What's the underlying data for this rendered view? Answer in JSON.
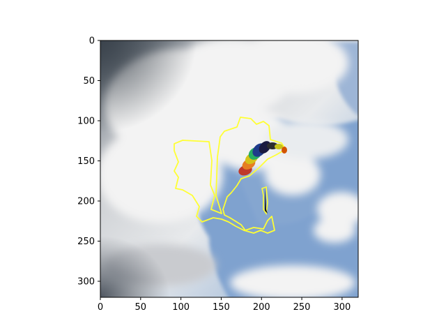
{
  "axes": {
    "x_ticks": [
      "0",
      "50",
      "100",
      "150",
      "200",
      "250",
      "300"
    ],
    "y_ticks": [
      "0",
      "50",
      "100",
      "150",
      "200",
      "250",
      "300"
    ],
    "x_tick_values": [
      0,
      50,
      100,
      150,
      200,
      250,
      300
    ],
    "y_tick_values": [
      0,
      50,
      100,
      150,
      200,
      250,
      300
    ],
    "xlim": [
      0,
      320
    ],
    "ylim": [
      320,
      0
    ]
  },
  "image": {
    "subject": "cloudy sky with colorful paraglider",
    "overlay_color": "#ffff33",
    "sky_color": "#7a9ccb",
    "cloud_color": "#f2f2f2",
    "canopy_colors": [
      "#c0392b",
      "#e67e22",
      "#f1c40f",
      "#27ae60",
      "#1e3a8a",
      "#1a1a40"
    ]
  }
}
